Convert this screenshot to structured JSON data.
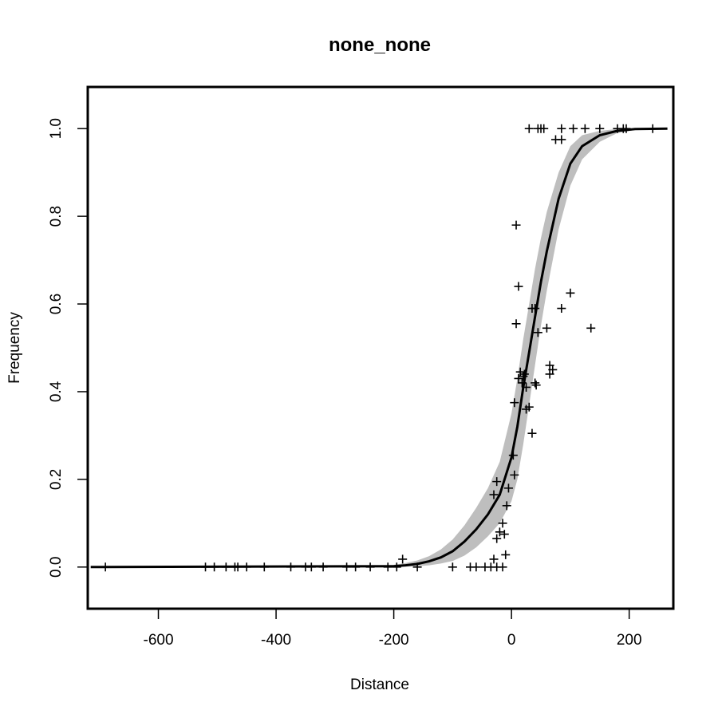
{
  "chart_data": {
    "type": "scatter",
    "title": "none_none",
    "xlabel": "Distance",
    "ylabel": "Frequency",
    "xlim": [
      -720,
      275
    ],
    "ylim": [
      -0.095,
      1.095
    ],
    "x_ticks": [
      -600,
      -400,
      -200,
      0,
      200
    ],
    "x_tick_labels": [
      "-600",
      "-400",
      "-200",
      "0",
      "200"
    ],
    "y_ticks": [
      0.0,
      0.2,
      0.4,
      0.6,
      0.8,
      1.0
    ],
    "y_tick_labels": [
      "0.0",
      "0.2",
      "0.4",
      "0.6",
      "0.8",
      "1.0"
    ],
    "grid": false,
    "colors": {
      "curve": "#000000",
      "band": "#bebebe",
      "points": "#000000",
      "frame": "#000000"
    },
    "fit_curve": {
      "x": [
        -715,
        -200,
        -180,
        -160,
        -140,
        -120,
        -100,
        -80,
        -60,
        -40,
        -20,
        0,
        10,
        20,
        30,
        40,
        50,
        60,
        80,
        100,
        120,
        150,
        180,
        210,
        265
      ],
      "y": [
        0.0,
        0.002,
        0.004,
        0.007,
        0.013,
        0.022,
        0.036,
        0.058,
        0.086,
        0.12,
        0.165,
        0.25,
        0.32,
        0.41,
        0.49,
        0.57,
        0.65,
        0.72,
        0.84,
        0.92,
        0.96,
        0.985,
        0.995,
        0.999,
        1.0
      ]
    },
    "confidence_band": {
      "x": [
        -715,
        -200,
        -180,
        -160,
        -140,
        -120,
        -100,
        -80,
        -60,
        -40,
        -20,
        0,
        10,
        20,
        30,
        40,
        50,
        60,
        80,
        100,
        120,
        150,
        180,
        210,
        265
      ],
      "lower": [
        0.0,
        0.0,
        0.001,
        0.002,
        0.004,
        0.008,
        0.014,
        0.026,
        0.045,
        0.07,
        0.1,
        0.15,
        0.2,
        0.28,
        0.37,
        0.46,
        0.55,
        0.63,
        0.77,
        0.87,
        0.93,
        0.97,
        0.99,
        0.997,
        1.0
      ],
      "upper": [
        0.0,
        0.005,
        0.009,
        0.015,
        0.025,
        0.04,
        0.063,
        0.095,
        0.135,
        0.18,
        0.24,
        0.35,
        0.43,
        0.52,
        0.6,
        0.68,
        0.75,
        0.81,
        0.9,
        0.96,
        0.985,
        0.995,
        0.999,
        1.0,
        1.0
      ]
    },
    "points": [
      [
        -690,
        0
      ],
      [
        -520,
        0
      ],
      [
        -505,
        0
      ],
      [
        -485,
        0
      ],
      [
        -470,
        0
      ],
      [
        -465,
        0
      ],
      [
        -450,
        0
      ],
      [
        -420,
        0
      ],
      [
        -375,
        0
      ],
      [
        -350,
        0
      ],
      [
        -340,
        0
      ],
      [
        -320,
        0
      ],
      [
        -280,
        0
      ],
      [
        -265,
        0
      ],
      [
        -240,
        0
      ],
      [
        -210,
        0
      ],
      [
        -195,
        0
      ],
      [
        -185,
        0.018
      ],
      [
        -160,
        0
      ],
      [
        -100,
        0
      ],
      [
        -70,
        0
      ],
      [
        -60,
        0
      ],
      [
        -45,
        0
      ],
      [
        -35,
        0
      ],
      [
        -25,
        0
      ],
      [
        -15,
        0
      ],
      [
        -30,
        0.018
      ],
      [
        -10,
        0.028
      ],
      [
        -25,
        0.065
      ],
      [
        -20,
        0.08
      ],
      [
        -12,
        0.075
      ],
      [
        -15,
        0.1
      ],
      [
        -30,
        0.165
      ],
      [
        -25,
        0.195
      ],
      [
        -8,
        0.14
      ],
      [
        -5,
        0.18
      ],
      [
        5,
        0.21
      ],
      [
        3,
        0.255
      ],
      [
        5,
        0.375
      ],
      [
        8,
        0.555
      ],
      [
        12,
        0.64
      ],
      [
        8,
        0.78
      ],
      [
        12,
        0.43
      ],
      [
        15,
        0.445
      ],
      [
        18,
        0.42
      ],
      [
        20,
        0.435
      ],
      [
        22,
        0.44
      ],
      [
        25,
        0.41
      ],
      [
        25,
        0.36
      ],
      [
        30,
        0.365
      ],
      [
        35,
        0.305
      ],
      [
        40,
        0.42
      ],
      [
        42,
        0.415
      ],
      [
        35,
        0.59
      ],
      [
        40,
        0.59
      ],
      [
        45,
        0.535
      ],
      [
        60,
        0.545
      ],
      [
        65,
        0.44
      ],
      [
        65,
        0.46
      ],
      [
        70,
        0.45
      ],
      [
        85,
        0.59
      ],
      [
        100,
        0.625
      ],
      [
        135,
        0.545
      ],
      [
        75,
        0.975
      ],
      [
        85,
        0.975
      ],
      [
        30,
        1.0
      ],
      [
        45,
        1.0
      ],
      [
        50,
        1.0
      ],
      [
        55,
        1.0
      ],
      [
        85,
        1.0
      ],
      [
        105,
        1.0
      ],
      [
        125,
        1.0
      ],
      [
        150,
        1.0
      ],
      [
        180,
        1.0
      ],
      [
        190,
        1.0
      ],
      [
        195,
        1.0
      ],
      [
        240,
        1.0
      ]
    ]
  }
}
